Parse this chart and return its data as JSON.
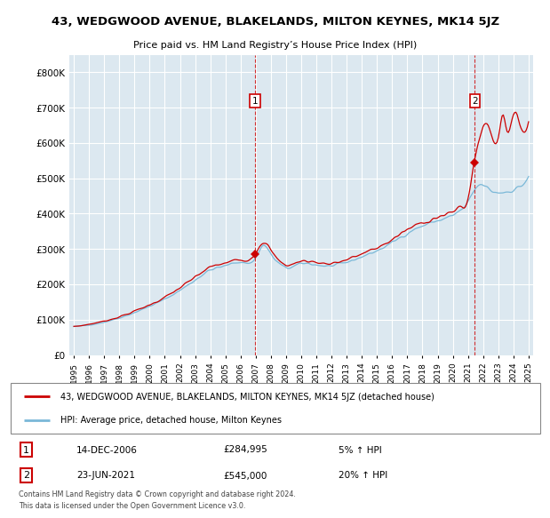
{
  "title": "43, WEDGWOOD AVENUE, BLAKELANDS, MILTON KEYNES, MK14 5JZ",
  "subtitle": "Price paid vs. HM Land Registry’s House Price Index (HPI)",
  "legend_line1": "43, WEDGWOOD AVENUE, BLAKELANDS, MILTON KEYNES, MK14 5JZ (detached house)",
  "legend_line2": "HPI: Average price, detached house, Milton Keynes",
  "annotation1_label": "1",
  "annotation1_date": "14-DEC-2006",
  "annotation1_price": "£284,995",
  "annotation1_pct": "5% ↑ HPI",
  "annotation2_label": "2",
  "annotation2_date": "23-JUN-2021",
  "annotation2_price": "£545,000",
  "annotation2_pct": "20% ↑ HPI",
  "footer": "Contains HM Land Registry data © Crown copyright and database right 2024.\nThis data is licensed under the Open Government Licence v3.0.",
  "ylim": [
    0,
    850000
  ],
  "yticks": [
    0,
    100000,
    200000,
    300000,
    400000,
    500000,
    600000,
    700000,
    800000
  ],
  "hpi_color": "#7ab8d8",
  "price_color": "#cc0000",
  "vline_color": "#cc0000",
  "background_color": "#ffffff",
  "plot_bg_color": "#dce8f0",
  "grid_color": "#ffffff"
}
